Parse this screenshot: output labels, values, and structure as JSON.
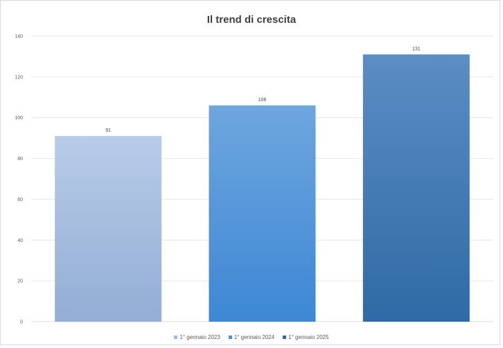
{
  "chart_data": {
    "type": "bar",
    "title": "Il trend di crescita",
    "xlabel": "",
    "ylabel": "",
    "categories": [
      "1° gennaio 2023",
      "1° gennaio 2024",
      "1° gennaio 2025"
    ],
    "values": [
      91,
      106,
      131
    ],
    "data_labels": [
      "91",
      "106",
      "131"
    ],
    "ylim": [
      0,
      140
    ],
    "yticks": [
      0,
      20,
      40,
      60,
      80,
      100,
      120,
      140
    ],
    "grid": true,
    "legend_position": "bottom",
    "colors": [
      {
        "top": "#b8cce8",
        "bottom": "#93add4"
      },
      {
        "top": "#6ea6de",
        "bottom": "#3d87d4"
      },
      {
        "top": "#5c8dc4",
        "bottom": "#2f6aa5"
      }
    ],
    "legend_swatches": [
      "#9dbbe0",
      "#4a90d9",
      "#2f6aa5"
    ]
  }
}
